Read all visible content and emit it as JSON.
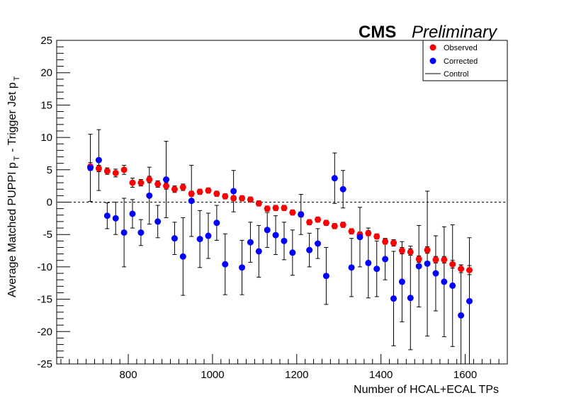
{
  "header": {
    "experiment": "CMS",
    "status": "Preliminary"
  },
  "legend": {
    "observed": "Observed",
    "corrected": "Corrected",
    "control": "Control"
  },
  "colors": {
    "observed": "#ff0000",
    "corrected": "#0000ff",
    "control": "#000000"
  },
  "chart_data": {
    "type": "scatter",
    "title": "",
    "xlabel": "Number of HCAL+ECAL TPs",
    "ylabel_parts": [
      "Average Matched PUPPI p",
      "T",
      " - Trigger Jet p",
      "T"
    ],
    "xlim": [
      630,
      1700
    ],
    "ylim": [
      -25,
      25
    ],
    "x_ticks": [
      800,
      1000,
      1200,
      1400,
      1600
    ],
    "y_ticks": [
      -25,
      -20,
      -15,
      -10,
      -5,
      0,
      5,
      10,
      15,
      20,
      25
    ],
    "legend_position": "top-right",
    "reference_line": {
      "y": 0,
      "style": "dashed"
    },
    "series": [
      {
        "name": "Observed",
        "color": "#ff0000",
        "x": [
          710,
          730,
          750,
          770,
          790,
          810,
          830,
          850,
          870,
          890,
          910,
          930,
          950,
          970,
          990,
          1010,
          1030,
          1050,
          1070,
          1090,
          1110,
          1130,
          1150,
          1170,
          1190,
          1210,
          1230,
          1250,
          1270,
          1290,
          1310,
          1330,
          1350,
          1370,
          1390,
          1410,
          1430,
          1450,
          1470,
          1490,
          1510,
          1530,
          1550,
          1570,
          1590,
          1610
        ],
        "y": [
          5.5,
          5.2,
          4.8,
          4.5,
          5.0,
          3.0,
          3.0,
          3.5,
          2.8,
          2.5,
          2.0,
          2.3,
          1.3,
          1.6,
          1.8,
          1.3,
          0.9,
          0.6,
          0.6,
          0.4,
          -0.2,
          -1.0,
          -0.9,
          -0.9,
          -1.6,
          -1.9,
          -3.1,
          -2.7,
          -3.2,
          -3.7,
          -3.5,
          -4.5,
          -5.0,
          -4.8,
          -5.3,
          -6.1,
          -6.3,
          -7.5,
          -7.7,
          -8.8,
          -7.4,
          -8.9,
          -8.9,
          -9.6,
          -10.3,
          -10.5
        ],
        "err": [
          0.6,
          0.5,
          0.5,
          0.6,
          0.7,
          0.7,
          0.5,
          0.5,
          0.5,
          0.5,
          0.5,
          0.5,
          0.4,
          0.4,
          0.4,
          0.4,
          0.4,
          0.4,
          0.4,
          0.4,
          0.4,
          0.4,
          0.4,
          0.4,
          0.4,
          0.4,
          0.4,
          0.4,
          0.4,
          0.4,
          0.4,
          0.4,
          0.4,
          0.4,
          0.4,
          0.4,
          0.5,
          0.5,
          0.5,
          0.5,
          0.5,
          0.5,
          0.5,
          0.6,
          0.6,
          0.7
        ]
      },
      {
        "name": "Corrected",
        "color": "#0000ff",
        "x": [
          710,
          730,
          750,
          770,
          790,
          810,
          830,
          850,
          870,
          890,
          910,
          930,
          950,
          970,
          990,
          1010,
          1030,
          1050,
          1070,
          1090,
          1110,
          1130,
          1150,
          1170,
          1190,
          1210,
          1230,
          1250,
          1270,
          1290,
          1310,
          1330,
          1350,
          1370,
          1390,
          1410,
          1430,
          1450,
          1470,
          1490,
          1510,
          1530,
          1550,
          1570,
          1590,
          1610
        ],
        "y": [
          5.3,
          6.5,
          -2.1,
          -2.5,
          -4.7,
          -1.8,
          -4.7,
          1.0,
          -3.0,
          3.5,
          -5.6,
          -8.4,
          0.2,
          -5.7,
          -5.2,
          -3.2,
          -9.6,
          1.7,
          -10.1,
          -6.2,
          -7.6,
          -4.3,
          -5.1,
          -6.0,
          -7.8,
          -1.9,
          -7.4,
          -6.4,
          -11.4,
          3.7,
          2.0,
          -10.1,
          -5.4,
          -9.4,
          -10.3,
          -8.8,
          -14.9,
          -12.3,
          -14.8,
          -9.9,
          -9.5,
          -11.0,
          -12.3,
          -12.9,
          -17.5,
          -15.3
        ],
        "err": [
          5.2,
          4.7,
          2.0,
          2.5,
          5.3,
          2.2,
          2.0,
          4.4,
          2.5,
          5.9,
          2.5,
          6.0,
          5.5,
          4.4,
          3.5,
          2.7,
          4.7,
          3.2,
          4.2,
          3.1,
          4.0,
          2.7,
          3.0,
          2.9,
          3.5,
          3.1,
          2.6,
          2.3,
          4.4,
          3.9,
          2.9,
          4.5,
          4.6,
          5.4,
          4.3,
          3.2,
          7.3,
          6.2,
          8.0,
          6.3,
          11.2,
          5.8,
          8.5,
          9.4,
          7.8,
          9.8
        ]
      }
    ]
  }
}
